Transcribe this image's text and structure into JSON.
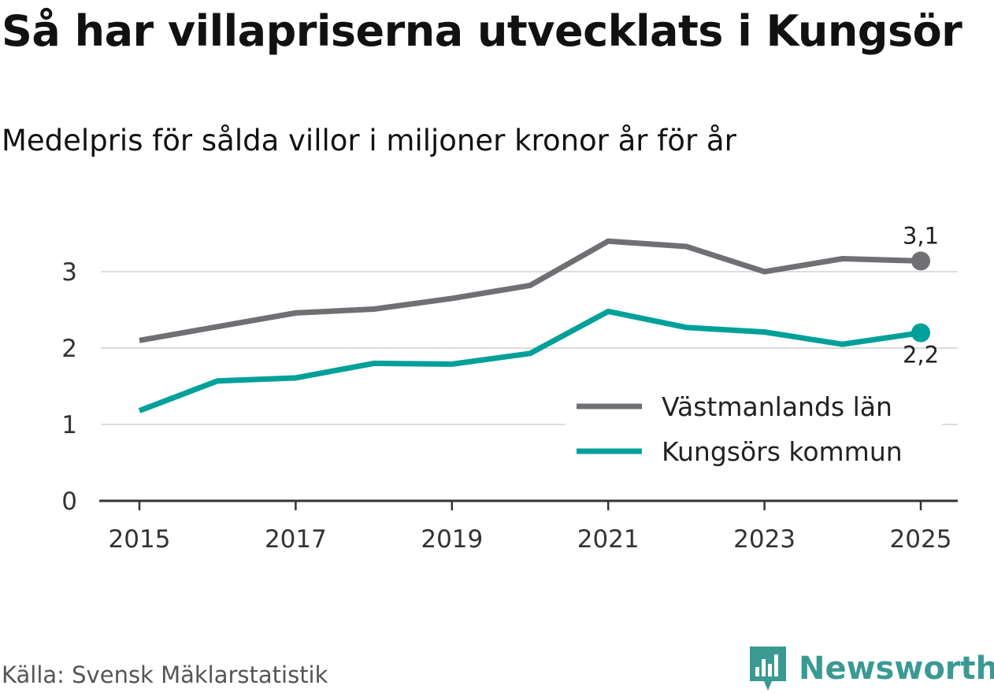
{
  "title": "Så har villapriserna utvecklats i Kungsör",
  "subtitle": "Medelpris för sålda villor i miljoner kronor år för år",
  "source": "Källa: Svensk Mäklarstatistik",
  "brand": "Newsworthy",
  "colors": {
    "gray": "#707074",
    "teal": "#00a09a",
    "brand": "#3a9a93",
    "grid": "#dcdcdc",
    "axis": "#333333"
  },
  "chart_data": {
    "type": "line",
    "title": "Så har villapriserna utvecklats i Kungsör",
    "ylabel": "",
    "xlabel": "",
    "x": [
      2015,
      2016,
      2017,
      2018,
      2019,
      2020,
      2021,
      2022,
      2023,
      2024,
      2025
    ],
    "xticks": [
      "2015",
      "2017",
      "2019",
      "2021",
      "2023",
      "2025"
    ],
    "yticks": [
      "0",
      "1",
      "2",
      "3"
    ],
    "ylim": [
      0,
      3.5
    ],
    "xlim": [
      2014.5,
      2025.5
    ],
    "legend_position": "center-right",
    "series": [
      {
        "name": "Västmanlands län",
        "color": "#707074",
        "values": [
          2.1,
          2.28,
          2.46,
          2.51,
          2.65,
          2.82,
          3.4,
          3.33,
          3.0,
          3.17,
          3.14
        ],
        "end_label": "3,1"
      },
      {
        "name": "Kungsörs kommun",
        "color": "#00a09a",
        "values": [
          1.18,
          1.57,
          1.61,
          1.8,
          1.79,
          1.93,
          2.48,
          2.27,
          2.21,
          2.05,
          2.2
        ],
        "end_label": "2,2"
      }
    ]
  }
}
